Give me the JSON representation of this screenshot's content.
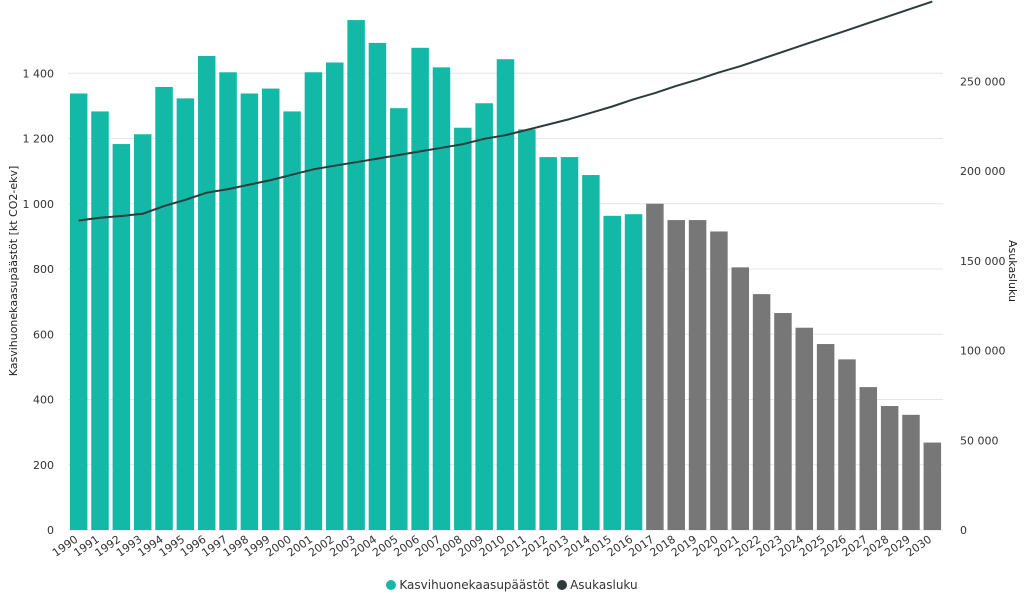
{
  "chart_data": {
    "type": "bar",
    "categories": [
      "1990",
      "1991",
      "1992",
      "1993",
      "1994",
      "1995",
      "1996",
      "1997",
      "1998",
      "1999",
      "2000",
      "2001",
      "2002",
      "2003",
      "2004",
      "2005",
      "2006",
      "2007",
      "2008",
      "2009",
      "2010",
      "2011",
      "2012",
      "2013",
      "2014",
      "2015",
      "2016",
      "2017",
      "2018",
      "2019",
      "2020",
      "2021",
      "2022",
      "2023",
      "2024",
      "2025",
      "2026",
      "2027",
      "2028",
      "2029",
      "2030"
    ],
    "series": [
      {
        "name": "Kasvihuonekaasupäästöt",
        "axis": "left",
        "color": "#14b8a6",
        "color_projection": "#777777",
        "historical_until": "2016",
        "values": [
          1338,
          1283,
          1183,
          1213,
          1358,
          1323,
          1453,
          1403,
          1338,
          1353,
          1283,
          1403,
          1433,
          1563,
          1493,
          1293,
          1478,
          1418,
          1233,
          1308,
          1443,
          1228,
          1143,
          1143,
          1088,
          963,
          968,
          1000,
          950,
          950,
          915,
          805,
          723,
          665,
          620,
          570,
          523,
          438,
          380,
          353,
          268
        ]
      },
      {
        "name": "Asukasluku",
        "axis": "right",
        "type": "line",
        "color": "#2d3b3b",
        "values": [
          172500,
          174000,
          175000,
          176200,
          180500,
          184000,
          188000,
          190000,
          192500,
          195000,
          198000,
          201000,
          203000,
          205000,
          207000,
          209000,
          211000,
          213000,
          215000,
          218000,
          220000,
          223000,
          226000,
          229000,
          232500,
          236000,
          240000,
          243500,
          247500,
          251000,
          255000,
          258500,
          262500,
          266500,
          270500,
          274500,
          278500,
          282500,
          286500,
          290500,
          294500
        ]
      }
    ],
    "ylabel": "Kasvihuonekaasupäästöt [kt CO2-ekv]",
    "ylabel_right": "Asukasluku",
    "ylim": [
      0,
      1600
    ],
    "ylim_right": [
      0,
      290909
    ],
    "yticks": [
      0,
      200,
      400,
      600,
      800,
      1000,
      1200,
      1400
    ],
    "yticks_right": [
      0,
      50000,
      100000,
      150000,
      200000,
      250000
    ],
    "grid": true,
    "legend_position": "bottom-center"
  },
  "legend": {
    "items": [
      {
        "label": "Kasvihuonekaasupäästöt",
        "color": "#14b8a6"
      },
      {
        "label": "Asukasluku",
        "color": "#2d3b3b"
      }
    ]
  }
}
